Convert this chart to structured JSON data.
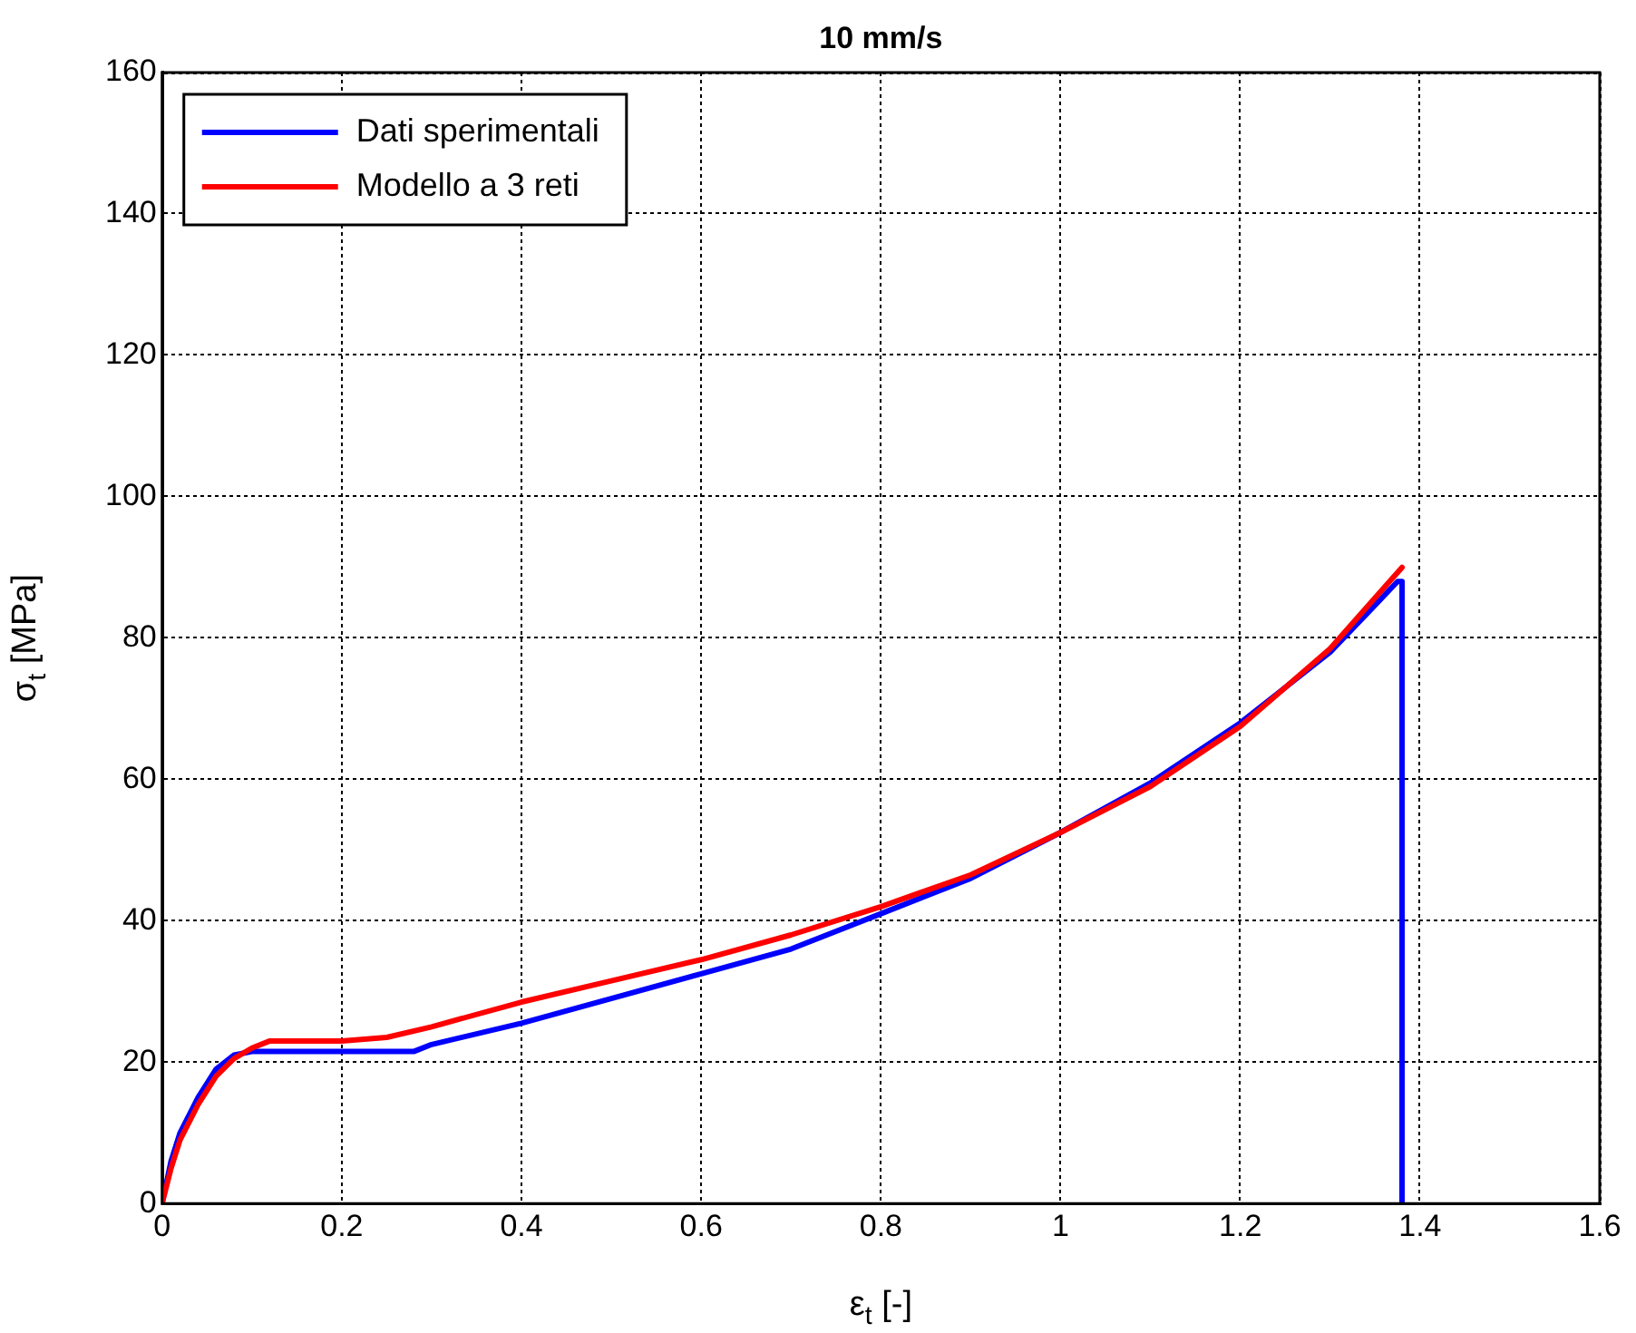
{
  "chart_data": {
    "type": "line",
    "title": "10 mm/s",
    "xlabel": "ε$_{t}$ [-]",
    "ylabel": "σ$_{t}$ [MPa]",
    "xlim": [
      0,
      1.6
    ],
    "xticks": [
      0,
      0.2,
      0.4,
      0.6,
      0.8,
      1,
      1.2,
      1.4,
      1.6
    ],
    "ylim": [
      0,
      160
    ],
    "yticks": [
      0,
      20,
      40,
      60,
      80,
      100,
      120,
      140,
      160
    ],
    "grid": true,
    "legend": "top left",
    "marker": "none",
    "line_style": "solid",
    "series": [
      {
        "name": "Dati sperimentali",
        "color": "#0000ff",
        "x": [
          0,
          0.01,
          0.02,
          0.04,
          0.06,
          0.08,
          0.1,
          0.2,
          0.28,
          0.3,
          0.4,
          0.5,
          0.6,
          0.7,
          0.8,
          0.9,
          1.0,
          1.1,
          1.2,
          1.3,
          1.375,
          1.38,
          1.38
        ],
        "values": [
          0,
          6,
          10,
          15,
          19,
          21,
          21.5,
          21.5,
          21.5,
          22.5,
          25.5,
          29,
          32.5,
          36,
          41,
          46,
          52.5,
          59.5,
          68,
          78,
          88,
          88,
          0
        ]
      },
      {
        "name": "Modello a 3 reti",
        "color": "#ff0000",
        "x": [
          0,
          0.01,
          0.02,
          0.04,
          0.06,
          0.08,
          0.1,
          0.12,
          0.2,
          0.25,
          0.3,
          0.4,
          0.5,
          0.6,
          0.7,
          0.8,
          0.9,
          1.0,
          1.1,
          1.2,
          1.3,
          1.38
        ],
        "values": [
          0,
          5,
          9,
          14,
          18,
          20.5,
          22,
          23,
          23,
          23.5,
          25,
          28.5,
          31.5,
          34.5,
          38,
          42,
          46.5,
          52.5,
          59,
          67.5,
          78.5,
          90
        ]
      }
    ]
  }
}
